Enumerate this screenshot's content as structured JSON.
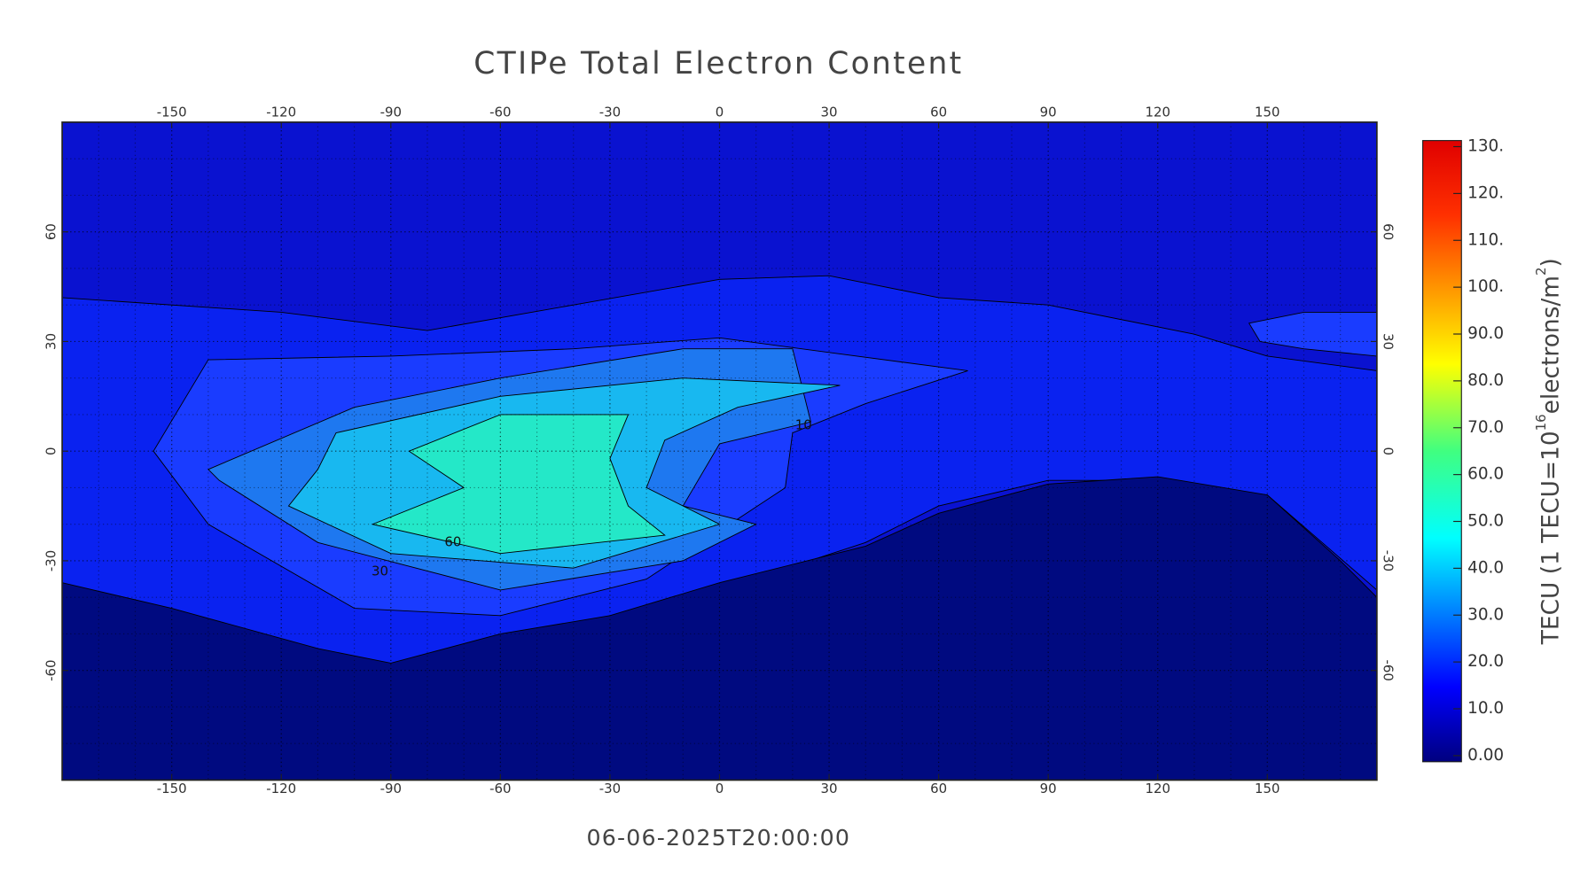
{
  "chart_data": {
    "type": "contour_map",
    "title": "CTIPe Total Electron Content",
    "subtitle": "06-06-2025T20:00:00",
    "xlim": [
      -180,
      180
    ],
    "ylim": [
      -90,
      90
    ],
    "xticks": [
      -150,
      -120,
      -90,
      -60,
      -30,
      0,
      30,
      60,
      90,
      120,
      150
    ],
    "yticks": [
      -60,
      -30,
      0,
      30,
      60
    ],
    "grid": true,
    "contour_labels": [
      "60",
      "30",
      "10"
    ],
    "colorbar": {
      "label": [
        "TECU (1 TECU=10",
        "16",
        "electrons/m",
        "2",
        ")"
      ],
      "colormap": "jet",
      "lim": [
        0,
        130
      ],
      "ticks": [
        {
          "value": 0,
          "label": "0.00"
        },
        {
          "value": 10,
          "label": "10.0"
        },
        {
          "value": 20,
          "label": "20.0"
        },
        {
          "value": 30,
          "label": "30.0"
        },
        {
          "value": 40,
          "label": "40.0"
        },
        {
          "value": 50,
          "label": "50.0"
        },
        {
          "value": 60,
          "label": "60.0"
        },
        {
          "value": 70,
          "label": "70.0"
        },
        {
          "value": 80,
          "label": "80.0"
        },
        {
          "value": 90,
          "label": "90.0"
        },
        {
          "value": 100,
          "label": "100."
        },
        {
          "value": 110,
          "label": "110."
        },
        {
          "value": 120,
          "label": "120."
        },
        {
          "value": 130,
          "label": "130."
        }
      ]
    }
  }
}
